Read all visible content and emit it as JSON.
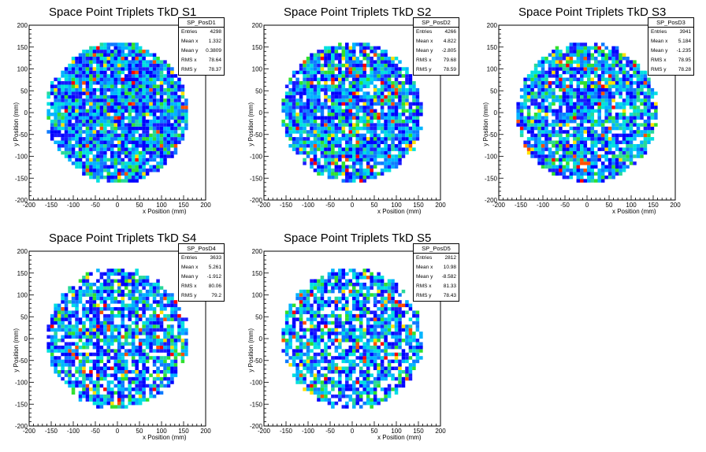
{
  "chart_data": [
    {
      "type": "heatmap",
      "title": "Space Point Triplets TkD S1",
      "xlabel": "x Position (mm)",
      "ylabel": "y Position (mm)",
      "xlim": [
        -200,
        200
      ],
      "ylim": [
        -200,
        200
      ],
      "xticks": [
        -200,
        -150,
        -100,
        -50,
        0,
        50,
        100,
        150,
        200
      ],
      "yticks": [
        -200,
        -150,
        -100,
        -50,
        0,
        50,
        100,
        150,
        200
      ],
      "binning": {
        "x_bins": 50,
        "y_bins": 50,
        "x_range": [
          -200,
          200
        ],
        "y_range": [
          -200,
          200
        ]
      },
      "distribution": {
        "shape": "disc",
        "radius_mm": 160
      },
      "stats": {
        "name": "SP_PosD1",
        "entries": "4298",
        "mean_x": "1.332",
        "mean_y": "0.3809",
        "rms_x": "78.64",
        "rms_y": "78.37"
      }
    },
    {
      "type": "heatmap",
      "title": "Space Point Triplets TkD S2",
      "xlabel": "x Position (mm)",
      "ylabel": "y Position (mm)",
      "xlim": [
        -200,
        200
      ],
      "ylim": [
        -200,
        200
      ],
      "xticks": [
        -200,
        -150,
        -100,
        -50,
        0,
        50,
        100,
        150,
        200
      ],
      "yticks": [
        -200,
        -150,
        -100,
        -50,
        0,
        50,
        100,
        150,
        200
      ],
      "binning": {
        "x_bins": 50,
        "y_bins": 50,
        "x_range": [
          -200,
          200
        ],
        "y_range": [
          -200,
          200
        ]
      },
      "distribution": {
        "shape": "disc",
        "radius_mm": 160
      },
      "stats": {
        "name": "SP_PosD2",
        "entries": "4266",
        "mean_x": "4.822",
        "mean_y": "-2.805",
        "rms_x": "79.68",
        "rms_y": "78.59"
      }
    },
    {
      "type": "heatmap",
      "title": "Space Point Triplets TkD S3",
      "xlabel": "x Position (mm)",
      "ylabel": "y Position (mm)",
      "xlim": [
        -200,
        200
      ],
      "ylim": [
        -200,
        200
      ],
      "xticks": [
        -200,
        -150,
        -100,
        -50,
        0,
        50,
        100,
        150,
        200
      ],
      "yticks": [
        -200,
        -150,
        -100,
        -50,
        0,
        50,
        100,
        150,
        200
      ],
      "binning": {
        "x_bins": 50,
        "y_bins": 50,
        "x_range": [
          -200,
          200
        ],
        "y_range": [
          -200,
          200
        ]
      },
      "distribution": {
        "shape": "disc",
        "radius_mm": 160
      },
      "stats": {
        "name": "SP_PosD3",
        "entries": "3941",
        "mean_x": "5.184",
        "mean_y": "-1.235",
        "rms_x": "78.95",
        "rms_y": "78.28"
      }
    },
    {
      "type": "heatmap",
      "title": "Space Point Triplets TkD S4",
      "xlabel": "x Position (mm)",
      "ylabel": "y Position (mm)",
      "xlim": [
        -200,
        200
      ],
      "ylim": [
        -200,
        200
      ],
      "xticks": [
        -200,
        -150,
        -100,
        -50,
        0,
        50,
        100,
        150,
        200
      ],
      "yticks": [
        -200,
        -150,
        -100,
        -50,
        0,
        50,
        100,
        150,
        200
      ],
      "binning": {
        "x_bins": 50,
        "y_bins": 50,
        "x_range": [
          -200,
          200
        ],
        "y_range": [
          -200,
          200
        ]
      },
      "distribution": {
        "shape": "disc",
        "radius_mm": 160
      },
      "stats": {
        "name": "SP_PosD4",
        "entries": "3633",
        "mean_x": "5.261",
        "mean_y": "-1.912",
        "rms_x": "80.06",
        "rms_y": "79.2"
      }
    },
    {
      "type": "heatmap",
      "title": "Space Point Triplets TkD S5",
      "xlabel": "x Position (mm)",
      "ylabel": "y Position (mm)",
      "xlim": [
        -200,
        200
      ],
      "ylim": [
        -200,
        200
      ],
      "xticks": [
        -200,
        -150,
        -100,
        -50,
        0,
        50,
        100,
        150,
        200
      ],
      "yticks": [
        -200,
        -150,
        -100,
        -50,
        0,
        50,
        100,
        150,
        200
      ],
      "binning": {
        "x_bins": 50,
        "y_bins": 50,
        "x_range": [
          -200,
          200
        ],
        "y_range": [
          -200,
          200
        ]
      },
      "distribution": {
        "shape": "disc",
        "radius_mm": 160
      },
      "stats": {
        "name": "SP_PosD5",
        "entries": "2812",
        "mean_x": "10.98",
        "mean_y": "-8.582",
        "rms_x": "81.33",
        "rms_y": "78.43"
      }
    }
  ],
  "stats_labels": {
    "entries": "Entries",
    "mean_x": "Mean x",
    "mean_y": "Mean y",
    "rms_x": "RMS x",
    "rms_y": "RMS y"
  },
  "palette": [
    "#0000ff",
    "#1a1aff",
    "#0e7bff",
    "#00b4ff",
    "#00e0e0",
    "#28d89a",
    "#30e030",
    "#ffe000",
    "#ff5000",
    "#ff0000"
  ]
}
